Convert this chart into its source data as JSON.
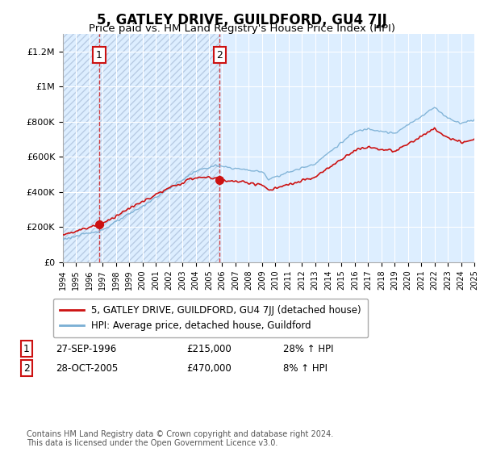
{
  "title": "5, GATLEY DRIVE, GUILDFORD, GU4 7JJ",
  "subtitle": "Price paid vs. HM Land Registry's House Price Index (HPI)",
  "ylim": [
    0,
    1300000
  ],
  "yticks": [
    0,
    200000,
    400000,
    600000,
    800000,
    1000000,
    1200000
  ],
  "ytick_labels": [
    "£0",
    "£200K",
    "£400K",
    "£600K",
    "£800K",
    "£1M",
    "£1.2M"
  ],
  "x_start_year": 1994,
  "x_end_year": 2025,
  "hpi_color": "#7aafd4",
  "price_color": "#cc1111",
  "sale1_year": 1996.74,
  "sale1_price": 215000,
  "sale2_year": 2005.82,
  "sale2_price": 470000,
  "legend_label1": "5, GATLEY DRIVE, GUILDFORD, GU4 7JJ (detached house)",
  "legend_label2": "HPI: Average price, detached house, Guildford",
  "annotation1_label": "1",
  "annotation1_date": "27-SEP-1996",
  "annotation1_price": "£215,000",
  "annotation1_hpi": "28% ↑ HPI",
  "annotation2_label": "2",
  "annotation2_date": "28-OCT-2005",
  "annotation2_price": "£470,000",
  "annotation2_hpi": "8% ↑ HPI",
  "footer": "Contains HM Land Registry data © Crown copyright and database right 2024.\nThis data is licensed under the Open Government Licence v3.0.",
  "bg_color": "#ddeeff",
  "grid_color": "#cccccc",
  "title_fontsize": 12,
  "subtitle_fontsize": 9.5,
  "tick_fontsize": 8,
  "legend_fontsize": 8.5,
  "annotation_fontsize": 8.5
}
